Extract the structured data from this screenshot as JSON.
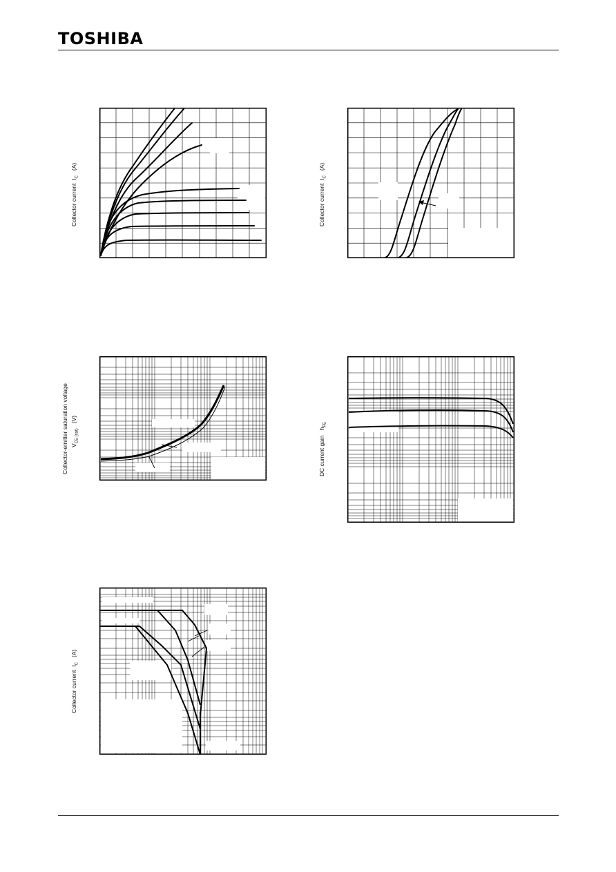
{
  "header": {
    "logo_text": "TOSHIBA"
  },
  "graphs": {
    "ic_vce": {
      "ylabel_prefix": "Collector current",
      "ylabel_sym": "I",
      "ylabel_sub": "C",
      "ylabel_unit": "(A)"
    },
    "ic_vbe": {
      "ylabel_prefix": "Collector current",
      "ylabel_sym": "I",
      "ylabel_sub": "C",
      "ylabel_unit": "(A)"
    },
    "vce_sat": {
      "ylabel_line1": "Collector-emitter saturation voltage",
      "ylabel_sym": "V",
      "ylabel_sub": "CE (sat)",
      "ylabel_unit": "(V)"
    },
    "hfe": {
      "ylabel_prefix": "DC current gain",
      "ylabel_sym": "h",
      "ylabel_sub": "FE"
    },
    "soa": {
      "ylabel_prefix": "Collector current",
      "ylabel_sym": "I",
      "ylabel_sub": "C",
      "ylabel_unit": "(A)"
    }
  },
  "colors": {
    "ink": "#000000",
    "paper": "#ffffff"
  }
}
